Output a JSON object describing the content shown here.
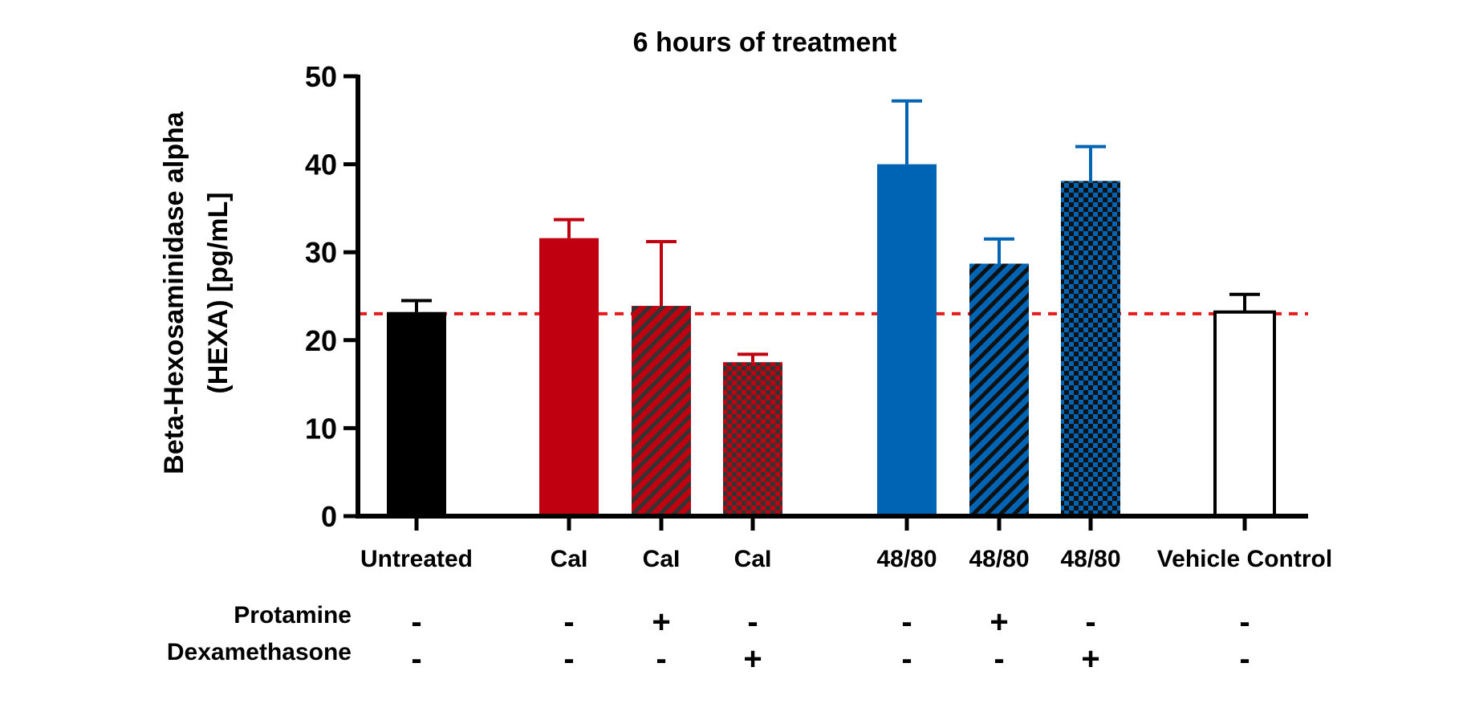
{
  "chart_data": {
    "type": "bar",
    "title": "6 hours of treatment",
    "ylabel_lines": [
      "Beta-Hexosaminidase alpha",
      "(HEXA) [pg/mL]"
    ],
    "ylim": [
      0,
      50
    ],
    "yticks": [
      0,
      10,
      20,
      30,
      40,
      50
    ],
    "grid": false,
    "reference_line": {
      "value": 23,
      "color": "#e41a1c",
      "style": "dashed"
    },
    "colors": {
      "black": "#000000",
      "red": "#c00010",
      "blue": "#0064b4",
      "white": "#ffffff",
      "pattern_dark": "#333333"
    },
    "categories": [
      "Untreated",
      "CaI",
      "CaI",
      "CaI",
      "48/80",
      "48/80",
      "48/80",
      "Vehicle Control"
    ],
    "values": [
      23.2,
      31.6,
      23.9,
      17.5,
      40.0,
      28.7,
      38.1,
      23.2
    ],
    "errors": [
      1.3,
      2.1,
      7.3,
      0.9,
      7.2,
      2.8,
      3.9,
      2.0
    ],
    "bars": [
      {
        "fill": "black",
        "pattern": "solid"
      },
      {
        "fill": "red",
        "pattern": "solid"
      },
      {
        "fill": "red",
        "pattern": "stripes"
      },
      {
        "fill": "red",
        "pattern": "checker"
      },
      {
        "fill": "blue",
        "pattern": "solid"
      },
      {
        "fill": "blue",
        "pattern": "stripes"
      },
      {
        "fill": "blue",
        "pattern": "checker"
      },
      {
        "fill": "white",
        "pattern": "outline"
      }
    ],
    "conditions": [
      {
        "label": "Protamine",
        "values": [
          "-",
          "-",
          "+",
          "-",
          "-",
          "+",
          "-",
          "-"
        ]
      },
      {
        "label": "Dexamethasone",
        "values": [
          "-",
          "-",
          "-",
          "+",
          "-",
          "-",
          "+",
          "-"
        ]
      }
    ]
  }
}
